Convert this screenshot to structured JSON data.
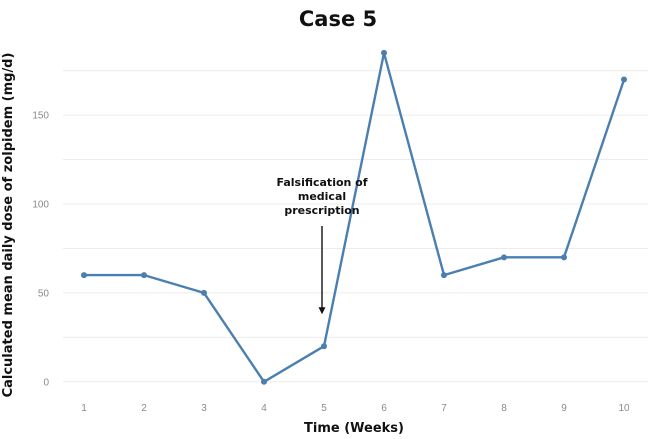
{
  "chart_data": {
    "type": "line",
    "title": "Case 5",
    "xlabel": "Time (Weeks)",
    "ylabel": "Calculated mean daily dose of zolpidem (mg/d)",
    "x": [
      1,
      2,
      3,
      4,
      5,
      6,
      7,
      8,
      9,
      10
    ],
    "y": [
      60,
      60,
      50,
      0,
      20,
      185,
      60,
      70,
      70,
      170
    ],
    "xticks": [
      "1",
      "2",
      "3",
      "4",
      "5",
      "6",
      "7",
      "8",
      "9",
      "10"
    ],
    "yticks": [
      "0",
      "50",
      "100",
      "150"
    ],
    "xlim": [
      0.65,
      10.4
    ],
    "ylim": [
      -8,
      190
    ],
    "grid": true,
    "line_color": "#4a7fb0",
    "annotations": [
      {
        "lines": [
          "Falsification of",
          "medical",
          "prescription"
        ],
        "x": 5,
        "arrow_to_y": 38
      }
    ]
  }
}
